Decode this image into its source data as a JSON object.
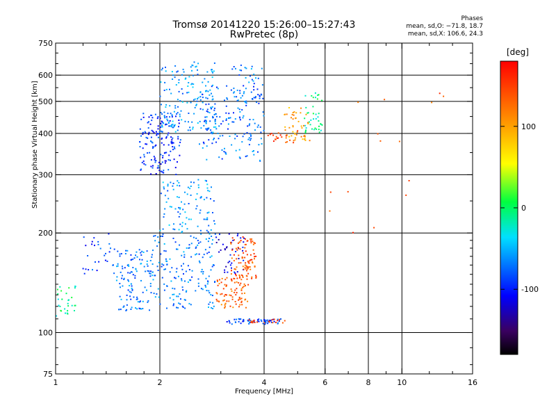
{
  "header": {
    "title_line1": "Tromsø 20141220 15:26:00–15:27:43",
    "title_line2": "RwPretec (8p)",
    "stats_title": "Phases",
    "stats_o": "mean, sd,O: −71.8, 18.7",
    "stats_x": "mean, sd,X: 106.6, 24.3"
  },
  "chart_data": {
    "type": "scatter",
    "title": "Tromsø 20141220 15:26:00–15:27:43",
    "subtitle": "RwPretec (8p)",
    "xlabel": "Frequency [MHz]",
    "ylabel": "Stationary phase Virtual Height [km]",
    "x_scale": "log",
    "y_scale": "log",
    "xlim": [
      1,
      16
    ],
    "ylim": [
      75,
      750
    ],
    "x_ticks": [
      1,
      2,
      4,
      6,
      8,
      10,
      16
    ],
    "x_tick_labels": [
      "1",
      "2",
      "4",
      "6",
      "8",
      "10",
      "16"
    ],
    "y_ticks": [
      75,
      100,
      200,
      300,
      400,
      500,
      600,
      750
    ],
    "y_tick_labels": [
      "75",
      "100",
      "200",
      "300",
      "400",
      "500",
      "600",
      "750"
    ],
    "grid": true,
    "colorbar": {
      "label": "[deg]",
      "range": [
        -180,
        180
      ],
      "tick_labels": [
        "100",
        "0",
        "-100"
      ],
      "tick_values": [
        100,
        0,
        -100
      ]
    },
    "clusters": [
      {
        "x_range": [
          1.0,
          1.15
        ],
        "y_range": [
          112,
          140
        ],
        "phase": -10,
        "count": 30
      },
      {
        "x_range": [
          1.2,
          1.5
        ],
        "y_range": [
          150,
          200
        ],
        "phase": -90,
        "count": 30
      },
      {
        "x_range": [
          1.5,
          1.9
        ],
        "y_range": [
          115,
          180
        ],
        "phase": -70,
        "count": 120
      },
      {
        "x_range": [
          1.9,
          2.9
        ],
        "y_range": [
          118,
          200
        ],
        "phase": -70,
        "count": 180
      },
      {
        "x_range": [
          2.0,
          2.9
        ],
        "y_range": [
          200,
          290
        ],
        "phase": -60,
        "count": 100
      },
      {
        "x_range": [
          1.75,
          2.3
        ],
        "y_range": [
          300,
          460
        ],
        "phase": -95,
        "count": 160
      },
      {
        "x_range": [
          2.0,
          2.9
        ],
        "y_range": [
          400,
          660
        ],
        "phase": -60,
        "count": 160
      },
      {
        "x_range": [
          2.6,
          4.0
        ],
        "y_range": [
          330,
          560
        ],
        "phase": -75,
        "count": 160
      },
      {
        "x_range": [
          3.2,
          4.0
        ],
        "y_range": [
          500,
          650
        ],
        "phase": -70,
        "count": 40
      },
      {
        "x_range": [
          2.9,
          3.5
        ],
        "y_range": [
          150,
          200
        ],
        "phase": -110,
        "count": 40
      },
      {
        "x_range": [
          2.9,
          3.6
        ],
        "y_range": [
          118,
          150
        ],
        "phase": 130,
        "count": 90
      },
      {
        "x_range": [
          3.2,
          3.8
        ],
        "y_range": [
          145,
          195
        ],
        "phase": 140,
        "count": 90
      },
      {
        "x_range": [
          3.1,
          4.5
        ],
        "y_range": [
          106,
          110
        ],
        "phase": -90,
        "count": 60
      },
      {
        "x_range": [
          3.6,
          4.6
        ],
        "y_range": [
          107,
          110
        ],
        "phase": 150,
        "count": 20
      },
      {
        "x_range": [
          4.0,
          5.0
        ],
        "y_range": [
          370,
          410
        ],
        "phase": 150,
        "count": 20
      },
      {
        "x_range": [
          4.5,
          5.5
        ],
        "y_range": [
          380,
          480
        ],
        "phase": 100,
        "count": 50
      },
      {
        "x_range": [
          5.2,
          5.9
        ],
        "y_range": [
          400,
          530
        ],
        "phase": -10,
        "count": 40
      },
      {
        "x_range": [
          6.0,
          14.0
        ],
        "y_range": [
          200,
          650
        ],
        "phase": 140,
        "count": 15
      }
    ]
  }
}
